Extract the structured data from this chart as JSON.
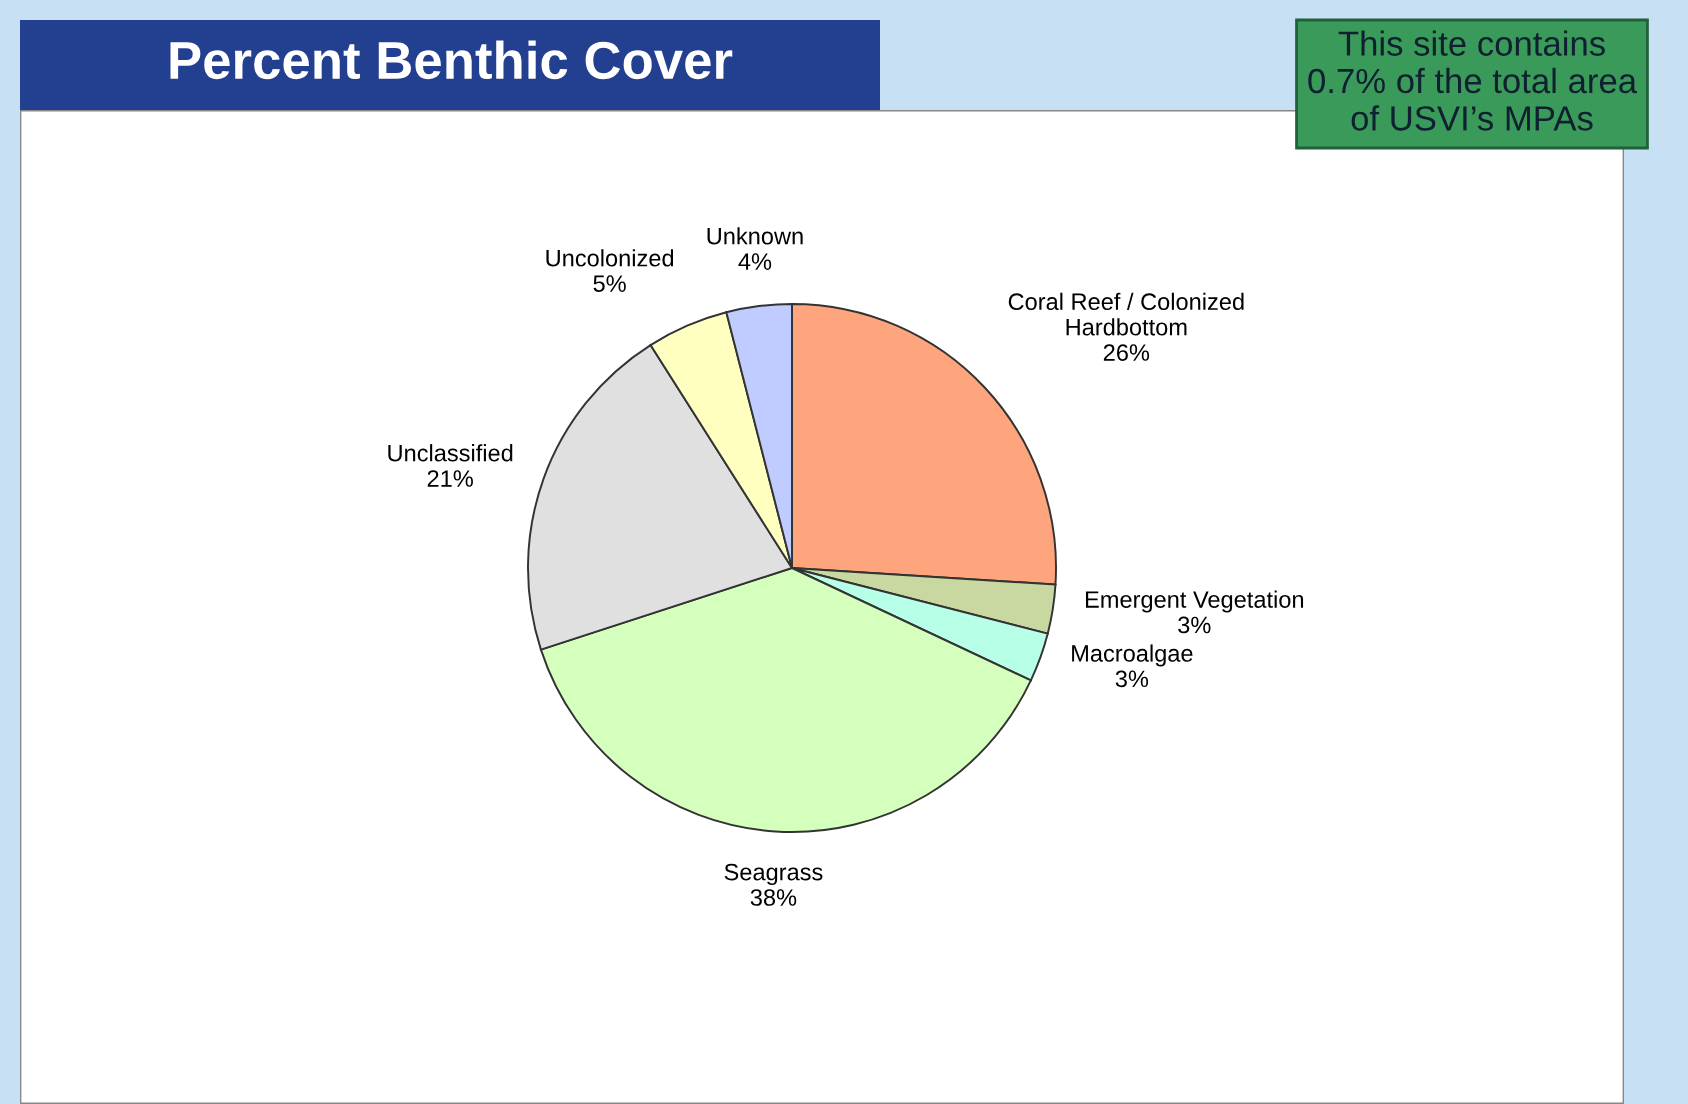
{
  "chart_data": {
    "type": "pie",
    "title": "Percent Benthic Cover",
    "categories": [
      "Coral Reef / Colonized\nHardbottom",
      "Emergent Vegetation",
      "Macroalgae",
      "Seagrass",
      "Unclassified",
      "Uncolonized",
      "Unknown"
    ],
    "values": [
      26,
      3,
      3,
      38,
      21,
      5,
      4
    ],
    "value_labels": [
      "26%",
      "3%",
      "3%",
      "38%",
      "21%",
      "5%",
      "4%"
    ],
    "colors": [
      "#ffa57d",
      "#c8d8a0",
      "#b8ffe8",
      "#d4ffbc",
      "#e0e0e0",
      "#ffffc0",
      "#c0ccff"
    ],
    "annotations": [
      "This site contains\n0.7% of the total area\nof USVI’s MPAs"
    ],
    "legend": false
  }
}
